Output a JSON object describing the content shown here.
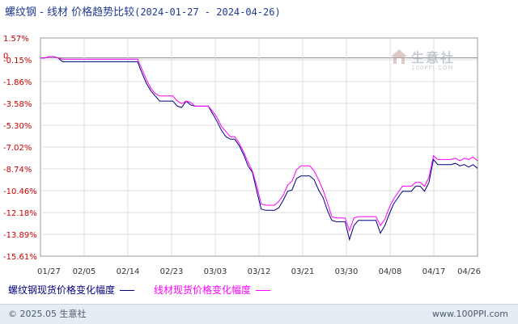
{
  "header": {
    "title": "螺纹钢 - 线材 价格趋势比较",
    "date_range": "(2024-01-27 - 2024-04-26)"
  },
  "watermark": {
    "name": "生意社",
    "url": "100PPI.COM"
  },
  "footer": {
    "copyright": "© 2025.05 生意社",
    "site": "www.100PPI.com"
  },
  "chart_data": {
    "type": "line",
    "title": "螺纹钢 - 线材 价格趋势比较",
    "xlabel": "",
    "ylabel": "",
    "ylim": [
      -15.61,
      1.57
    ],
    "grid": true,
    "legend_position": "bottom-left",
    "yticks": [
      "1.57%",
      "-0.15%",
      "-1.86%",
      "-3.58%",
      "-5.30%",
      "-7.02%",
      "-8.74%",
      "-10.46%",
      "-12.18%",
      "-13.89%",
      "-15.61%"
    ],
    "ytick_values": [
      1.57,
      -0.15,
      -1.86,
      -3.58,
      -5.3,
      -7.02,
      -8.74,
      -10.46,
      -12.18,
      -13.89,
      -15.61
    ],
    "zero_label": "0",
    "xticks": [
      "01/27",
      "02/05",
      "02/14",
      "02/23",
      "03/03",
      "03/12",
      "03/21",
      "03/30",
      "04/08",
      "04/17",
      "04/26"
    ],
    "series": [
      {
        "name": "螺纹钢现货价格变化幅度",
        "color": "#000080",
        "values": [
          0,
          0,
          0.1,
          0.1,
          0,
          -0.3,
          -0.3,
          -0.3,
          -0.3,
          -0.3,
          -0.3,
          -0.3,
          -0.3,
          -0.3,
          -0.3,
          -0.3,
          -0.3,
          -0.3,
          -0.3,
          -0.3,
          -0.3,
          -0.3,
          -0.3,
          -1.2,
          -2.0,
          -2.6,
          -3.0,
          -3.4,
          -3.4,
          -3.4,
          -3.4,
          -3.8,
          -3.9,
          -3.4,
          -3.7,
          -3.8,
          -3.8,
          -3.8,
          -3.8,
          -4.4,
          -5.0,
          -5.7,
          -6.2,
          -6.4,
          -6.4,
          -6.9,
          -7.6,
          -8.5,
          -9.0,
          -10.5,
          -11.9,
          -12.0,
          -12.0,
          -12.0,
          -11.8,
          -11.2,
          -10.5,
          -10.4,
          -9.5,
          -9.3,
          -9.3,
          -9.3,
          -9.6,
          -10.4,
          -11.0,
          -12.0,
          -12.8,
          -12.9,
          -12.9,
          -12.9,
          -14.3,
          -13.2,
          -12.8,
          -12.8,
          -12.8,
          -12.8,
          -12.8,
          -13.8,
          -13.2,
          -12.3,
          -11.5,
          -11.0,
          -10.5,
          -10.5,
          -10.5,
          -10.1,
          -10.1,
          -10.5,
          -9.8,
          -8.0,
          -8.4,
          -8.4,
          -8.4,
          -8.4,
          -8.3,
          -8.5,
          -8.4,
          -8.6,
          -8.4,
          -8.7
        ]
      },
      {
        "name": "线材现货价格变化幅度",
        "color": "#ff00ff",
        "values": [
          0,
          0,
          0.1,
          0.1,
          0,
          -0.1,
          -0.1,
          -0.1,
          -0.1,
          -0.1,
          -0.1,
          -0.1,
          -0.1,
          -0.1,
          -0.1,
          -0.1,
          -0.1,
          -0.1,
          -0.1,
          -0.1,
          -0.1,
          -0.1,
          -0.1,
          -0.9,
          -1.7,
          -2.4,
          -2.8,
          -3.0,
          -3.0,
          -3.0,
          -3.0,
          -3.4,
          -3.6,
          -3.4,
          -3.5,
          -3.8,
          -3.8,
          -3.8,
          -3.8,
          -4.2,
          -4.7,
          -5.4,
          -5.8,
          -6.2,
          -6.2,
          -6.7,
          -7.4,
          -8.2,
          -8.9,
          -10.1,
          -11.5,
          -11.6,
          -11.6,
          -11.6,
          -11.3,
          -10.8,
          -10.0,
          -9.7,
          -8.8,
          -8.5,
          -8.5,
          -8.5,
          -8.9,
          -9.6,
          -10.4,
          -11.4,
          -12.5,
          -12.6,
          -12.6,
          -12.6,
          -13.6,
          -12.6,
          -12.5,
          -12.5,
          -12.5,
          -12.5,
          -12.5,
          -13.2,
          -12.7,
          -11.8,
          -11.1,
          -10.6,
          -10.1,
          -10.1,
          -10.1,
          -9.8,
          -9.8,
          -10.1,
          -9.4,
          -7.7,
          -8.0,
          -8.0,
          -8.0,
          -8.0,
          -7.9,
          -8.1,
          -7.9,
          -8.0,
          -7.8,
          -8.1
        ]
      }
    ]
  }
}
